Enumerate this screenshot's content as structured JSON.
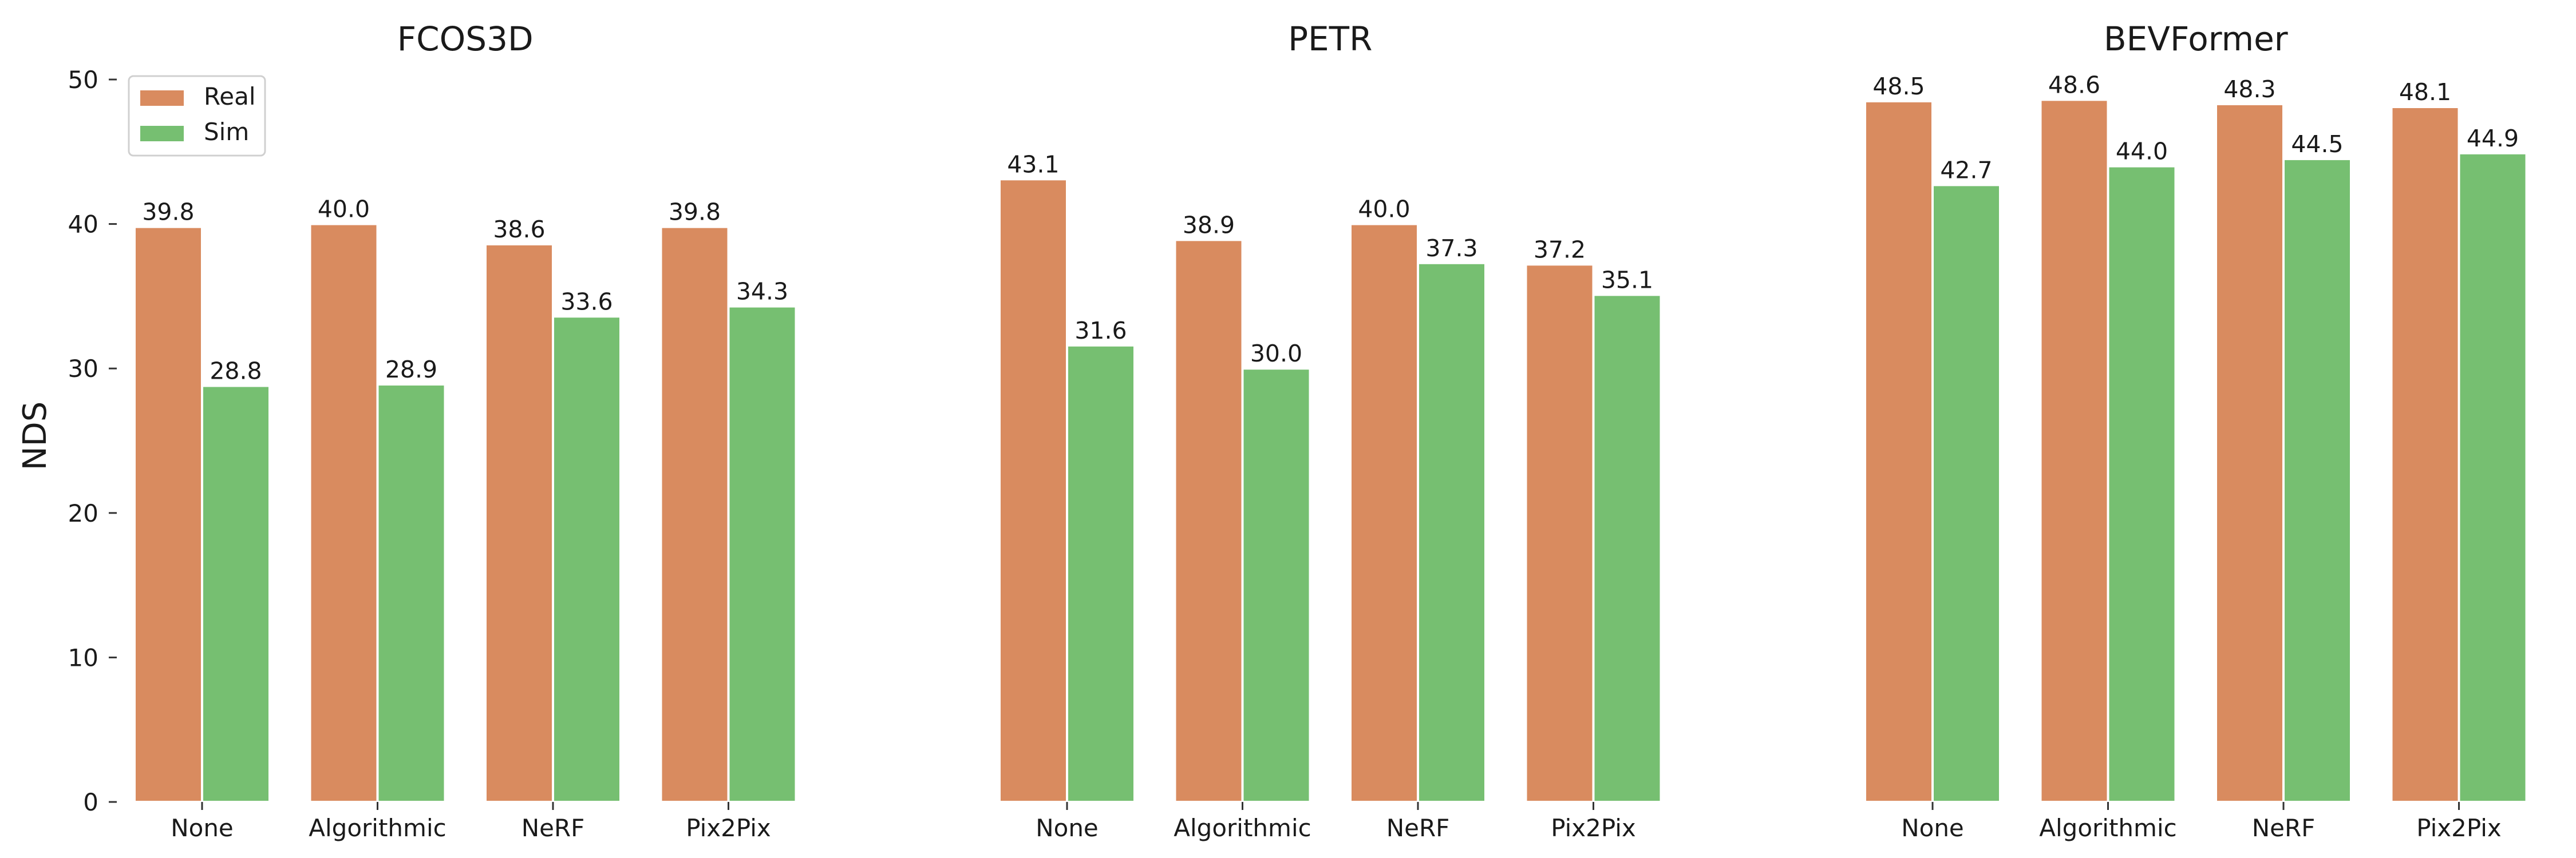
{
  "figure": {
    "ylabel": "NDS",
    "legend": {
      "placement": "top-left",
      "entries": [
        "Real",
        "Sim"
      ]
    },
    "colors": {
      "Real": "#d98b5f",
      "Sim": "#76bf71"
    }
  },
  "chart_data": [
    {
      "type": "bar",
      "title": "FCOS3D",
      "categories": [
        "None",
        "Algorithmic",
        "NeRF",
        "Pix2Pix"
      ],
      "series": [
        {
          "name": "Real",
          "values": [
            39.8,
            40.0,
            38.6,
            39.8
          ]
        },
        {
          "name": "Sim",
          "values": [
            28.8,
            28.9,
            33.6,
            34.3
          ]
        }
      ],
      "ylabel": "NDS",
      "ylim": [
        0,
        50
      ],
      "yticks": [
        0,
        10,
        20,
        30,
        40,
        50
      ],
      "grid": false,
      "legend": "top-left"
    },
    {
      "type": "bar",
      "title": "PETR",
      "categories": [
        "None",
        "Algorithmic",
        "NeRF",
        "Pix2Pix"
      ],
      "series": [
        {
          "name": "Real",
          "values": [
            43.1,
            38.9,
            40.0,
            37.2
          ]
        },
        {
          "name": "Sim",
          "values": [
            31.6,
            30.0,
            37.3,
            35.1
          ]
        }
      ],
      "ylim": [
        0,
        50
      ],
      "grid": false
    },
    {
      "type": "bar",
      "title": "BEVFormer",
      "categories": [
        "None",
        "Algorithmic",
        "NeRF",
        "Pix2Pix"
      ],
      "series": [
        {
          "name": "Real",
          "values": [
            48.5,
            48.6,
            48.3,
            48.1
          ]
        },
        {
          "name": "Sim",
          "values": [
            42.7,
            44.0,
            44.5,
            44.9
          ]
        }
      ],
      "ylim": [
        0,
        50
      ],
      "grid": false
    }
  ]
}
